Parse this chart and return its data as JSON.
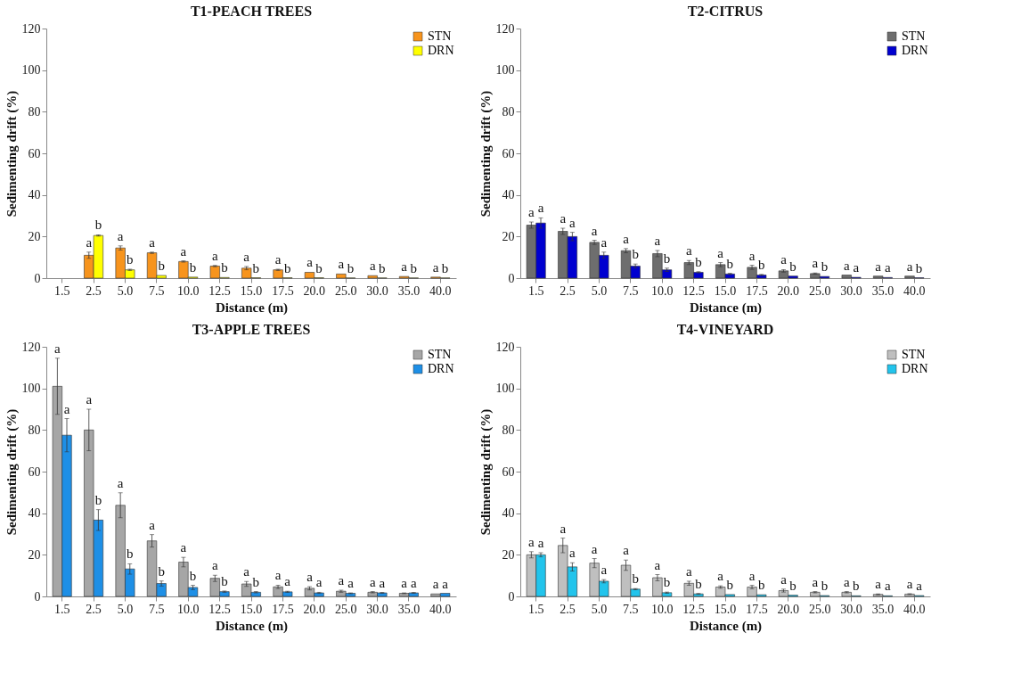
{
  "chart_data": [
    {
      "type": "bar",
      "title": "T1-PEACH TREES",
      "xlabel": "Distance (m)",
      "ylabel": "Sedimenting drift (%)",
      "categories": [
        "1.5",
        "2.5",
        "5.0",
        "7.5",
        "10.0",
        "12.5",
        "15.0",
        "17.5",
        "20.0",
        "25.0",
        "30.0",
        "35.0",
        "40.0"
      ],
      "ylim": [
        0,
        120
      ],
      "yticks": [
        0,
        20,
        40,
        60,
        80,
        100,
        120
      ],
      "grid": false,
      "legend": "top right",
      "series": [
        {
          "name": "STN",
          "color": "#f7941d",
          "values": [
            null,
            11,
            14.5,
            12.2,
            8,
            5.8,
            4.8,
            4,
            2.8,
            2,
            1.2,
            0.8,
            0.5
          ],
          "errors": [
            null,
            1.5,
            1,
            0.3,
            0.3,
            0.3,
            0.8,
            0.3,
            null,
            null,
            null,
            null,
            null
          ]
        },
        {
          "name": "DRN",
          "color": "#ffff00",
          "values": [
            null,
            20.5,
            4,
            1.3,
            0.5,
            0.3,
            0.2,
            0.2,
            0.2,
            0.1,
            0.1,
            0.1,
            0.1
          ],
          "errors": [
            null,
            0.3,
            0.3,
            null,
            null,
            null,
            null,
            null,
            null,
            null,
            null,
            null,
            null
          ]
        }
      ],
      "annotations": [
        {
          "text": "a",
          "x": "2.5",
          "y": 12.5
        },
        {
          "text": "b",
          "x": "2.5",
          "y": 20.8
        },
        {
          "text": "a",
          "x": "5.0",
          "y": 15.5
        },
        {
          "text": "b",
          "x": "5.0",
          "y": 4.3
        },
        {
          "text": "a",
          "x": "7.5",
          "y": 12.5
        },
        {
          "text": "b",
          "x": "7.5",
          "y": 1.3
        },
        {
          "text": "a",
          "x": "10.0",
          "y": 8.3
        },
        {
          "text": "b",
          "x": "10.0",
          "y": 0.5
        },
        {
          "text": "a",
          "x": "12.5",
          "y": 6.1
        },
        {
          "text": "b",
          "x": "12.5",
          "y": 0.3
        },
        {
          "text": "a",
          "x": "15.0",
          "y": 5.6
        },
        {
          "text": "b",
          "x": "15.0",
          "y": 0.2
        },
        {
          "text": "a",
          "x": "17.5",
          "y": 4.3
        },
        {
          "text": "b",
          "x": "17.5",
          "y": 0.2
        },
        {
          "text": "a",
          "x": "20.0",
          "y": 2.8
        },
        {
          "text": "b",
          "x": "20.0",
          "y": 0.2
        },
        {
          "text": "a",
          "x": "25.0",
          "y": 2
        },
        {
          "text": "b",
          "x": "25.0",
          "y": 0.1
        },
        {
          "text": "a",
          "x": "30.0",
          "y": 1.2
        },
        {
          "text": "b",
          "x": "30.0",
          "y": 0.1
        },
        {
          "text": "a",
          "x": "35.0",
          "y": 0.8
        },
        {
          "text": "b",
          "x": "35.0",
          "y": 0.1
        },
        {
          "text": "a",
          "x": "40.0",
          "y": 0.5
        },
        {
          "text": "b",
          "x": "40.0",
          "y": 0.1
        }
      ]
    },
    {
      "type": "bar",
      "title": "T2-CITRUS",
      "xlabel": "Distance (m)",
      "ylabel": "Sedimenting drift (%)",
      "categories": [
        "1.5",
        "2.5",
        "5.0",
        "7.5",
        "10.0",
        "12.5",
        "15.0",
        "17.5",
        "20.0",
        "25.0",
        "30.0",
        "35.0",
        "40.0"
      ],
      "ylim": [
        0,
        120
      ],
      "yticks": [
        0,
        20,
        40,
        60,
        80,
        100,
        120
      ],
      "grid": false,
      "legend": "top right",
      "series": [
        {
          "name": "STN",
          "color": "#6e6e6e",
          "values": [
            25.5,
            22.5,
            17.2,
            13.2,
            11.8,
            7.5,
            6.5,
            5.2,
            3.5,
            2.2,
            1.5,
            1,
            1
          ],
          "errors": [
            1.5,
            1.5,
            1,
            1,
            1.5,
            1,
            1,
            1,
            0.6,
            0.3,
            null,
            null,
            null
          ]
        },
        {
          "name": "DRN",
          "color": "#0000d0",
          "values": [
            26.5,
            20,
            11,
            5.8,
            4,
            2.8,
            2,
            1.5,
            1,
            0.8,
            0.4,
            0.3,
            0.2
          ],
          "errors": [
            2.5,
            2,
            1.5,
            1,
            0.8,
            0.3,
            0.3,
            0.3,
            null,
            null,
            null,
            null,
            null
          ]
        }
      ],
      "annotations": [
        {
          "text": "a",
          "x": "1.5",
          "y": 27
        },
        {
          "text": "a",
          "x": "1.5",
          "y": 29
        },
        {
          "text": "a",
          "x": "2.5",
          "y": 24
        },
        {
          "text": "a",
          "x": "2.5",
          "y": 22
        },
        {
          "text": "a",
          "x": "5.0",
          "y": 18.2
        },
        {
          "text": "a",
          "x": "5.0",
          "y": 12.5
        },
        {
          "text": "a",
          "x": "7.5",
          "y": 14.2
        },
        {
          "text": "b",
          "x": "7.5",
          "y": 6.8
        },
        {
          "text": "a",
          "x": "10.0",
          "y": 13.3
        },
        {
          "text": "b",
          "x": "10.0",
          "y": 4.8
        },
        {
          "text": "a",
          "x": "12.5",
          "y": 8.5
        },
        {
          "text": "b",
          "x": "12.5",
          "y": 3.1
        },
        {
          "text": "a",
          "x": "15.0",
          "y": 7.5
        },
        {
          "text": "b",
          "x": "15.0",
          "y": 2.3
        },
        {
          "text": "a",
          "x": "17.5",
          "y": 6.2
        },
        {
          "text": "b",
          "x": "17.5",
          "y": 1.8
        },
        {
          "text": "a",
          "x": "20.0",
          "y": 4.1
        },
        {
          "text": "b",
          "x": "20.0",
          "y": 1
        },
        {
          "text": "a",
          "x": "25.0",
          "y": 2.5
        },
        {
          "text": "b",
          "x": "25.0",
          "y": 0.8
        },
        {
          "text": "a",
          "x": "30.0",
          "y": 1.5
        },
        {
          "text": "a",
          "x": "30.0",
          "y": 0.4
        },
        {
          "text": "a",
          "x": "35.0",
          "y": 1
        },
        {
          "text": "a",
          "x": "35.0",
          "y": 0.3
        },
        {
          "text": "a",
          "x": "40.0",
          "y": 1
        },
        {
          "text": "b",
          "x": "40.0",
          "y": 0.2
        }
      ]
    },
    {
      "type": "bar",
      "title": "T3-APPLE TREES",
      "xlabel": "Distance (m)",
      "ylabel": "Sedimenting drift (%)",
      "categories": [
        "1.5",
        "2.5",
        "5.0",
        "7.5",
        "10.0",
        "12.5",
        "15.0",
        "17.5",
        "20.0",
        "25.0",
        "30.0",
        "35.0",
        "40.0"
      ],
      "ylim": [
        0,
        120
      ],
      "yticks": [
        0,
        20,
        40,
        60,
        80,
        100,
        120
      ],
      "grid": false,
      "legend": "top right",
      "series": [
        {
          "name": "STN",
          "color": "#a6a6a6",
          "values": [
            101,
            80,
            43.8,
            26.7,
            16.5,
            8.7,
            6,
            4.6,
            3.9,
            2.5,
            2,
            1.5,
            1.2
          ],
          "errors": [
            13.5,
            10,
            6,
            3,
            2.3,
            1.5,
            1.2,
            0.8,
            0.8,
            0.5,
            0.3,
            0.2,
            null
          ]
        },
        {
          "name": "DRN",
          "color": "#1e8fe6",
          "values": [
            77.5,
            36.7,
            13.2,
            6.2,
            4.3,
            2.3,
            2,
            2.2,
            1.7,
            1.5,
            1.7,
            1.7,
            1.5
          ],
          "errors": [
            8,
            5,
            2.5,
            1.2,
            1,
            0.3,
            0.3,
            0.3,
            0.3,
            0.2,
            0.2,
            0.2,
            null
          ]
        }
      ],
      "annotations": [
        {
          "text": "a",
          "x": "1.5",
          "y": 114.5
        },
        {
          "text": "a",
          "x": "1.5",
          "y": 85.5
        },
        {
          "text": "a",
          "x": "2.5",
          "y": 90
        },
        {
          "text": "b",
          "x": "2.5",
          "y": 41.7
        },
        {
          "text": "a",
          "x": "5.0",
          "y": 49.8
        },
        {
          "text": "b",
          "x": "5.0",
          "y": 15.7
        },
        {
          "text": "a",
          "x": "7.5",
          "y": 29.7
        },
        {
          "text": "b",
          "x": "7.5",
          "y": 7.4
        },
        {
          "text": "a",
          "x": "10.0",
          "y": 18.8
        },
        {
          "text": "b",
          "x": "10.0",
          "y": 5.3
        },
        {
          "text": "a",
          "x": "12.5",
          "y": 10.2
        },
        {
          "text": "b",
          "x": "12.5",
          "y": 2.6
        },
        {
          "text": "a",
          "x": "15.0",
          "y": 7.2
        },
        {
          "text": "b",
          "x": "15.0",
          "y": 2.3
        },
        {
          "text": "a",
          "x": "17.5",
          "y": 5.4
        },
        {
          "text": "a",
          "x": "17.5",
          "y": 2.5
        },
        {
          "text": "a",
          "x": "20.0",
          "y": 4.7
        },
        {
          "text": "a",
          "x": "20.0",
          "y": 2
        },
        {
          "text": "a",
          "x": "25.0",
          "y": 3
        },
        {
          "text": "a",
          "x": "25.0",
          "y": 1.7
        },
        {
          "text": "a",
          "x": "30.0",
          "y": 2.3
        },
        {
          "text": "a",
          "x": "30.0",
          "y": 1.9
        },
        {
          "text": "a",
          "x": "35.0",
          "y": 1.7
        },
        {
          "text": "a",
          "x": "35.0",
          "y": 1.9
        },
        {
          "text": "a",
          "x": "40.0",
          "y": 1.2
        },
        {
          "text": "a",
          "x": "40.0",
          "y": 1.5
        }
      ]
    },
    {
      "type": "bar",
      "title": "T4-VINEYARD",
      "xlabel": "Distance (m)",
      "ylabel": "Sedimenting drift (%)",
      "categories": [
        "1.5",
        "2.5",
        "5.0",
        "7.5",
        "10.0",
        "12.5",
        "15.0",
        "17.5",
        "20.0",
        "25.0",
        "30.0",
        "35.0",
        "40.0"
      ],
      "ylim": [
        0,
        120
      ],
      "yticks": [
        0,
        20,
        40,
        60,
        80,
        100,
        120
      ],
      "grid": false,
      "legend": "top right",
      "series": [
        {
          "name": "STN",
          "color": "#bfbfbf",
          "values": [
            20,
            24.5,
            16,
            15,
            9,
            6.3,
            4.5,
            4.5,
            2.8,
            2,
            2,
            1,
            1.1
          ],
          "errors": [
            1.5,
            3.5,
            2.2,
            2.5,
            1.5,
            1,
            0.6,
            0.8,
            0.7,
            0.3,
            0.3,
            0.2,
            0.2
          ]
        },
        {
          "name": "DRN",
          "color": "#22c4ec",
          "values": [
            20,
            14.2,
            7.3,
            3.5,
            1.8,
            1.2,
            0.9,
            0.8,
            0.6,
            0.4,
            0.3,
            0.3,
            0.4
          ],
          "errors": [
            1,
            2,
            0.8,
            0.3,
            0.3,
            0.2,
            null,
            null,
            null,
            null,
            null,
            null,
            null
          ]
        }
      ],
      "annotations": [
        {
          "text": "a",
          "x": "1.5",
          "y": 21.5
        },
        {
          "text": "a",
          "x": "1.5",
          "y": 21
        },
        {
          "text": "a",
          "x": "2.5",
          "y": 28
        },
        {
          "text": "a",
          "x": "2.5",
          "y": 16.2
        },
        {
          "text": "a",
          "x": "5.0",
          "y": 18.2
        },
        {
          "text": "a",
          "x": "5.0",
          "y": 8.1
        },
        {
          "text": "a",
          "x": "7.5",
          "y": 17.5
        },
        {
          "text": "b",
          "x": "7.5",
          "y": 3.8
        },
        {
          "text": "a",
          "x": "10.0",
          "y": 10.5
        },
        {
          "text": "b",
          "x": "10.0",
          "y": 2.1
        },
        {
          "text": "a",
          "x": "12.5",
          "y": 7.3
        },
        {
          "text": "b",
          "x": "12.5",
          "y": 1.4
        },
        {
          "text": "a",
          "x": "15.0",
          "y": 5.1
        },
        {
          "text": "b",
          "x": "15.0",
          "y": 0.9
        },
        {
          "text": "a",
          "x": "17.5",
          "y": 5.3
        },
        {
          "text": "b",
          "x": "17.5",
          "y": 0.8
        },
        {
          "text": "a",
          "x": "20.0",
          "y": 3.5
        },
        {
          "text": "b",
          "x": "20.0",
          "y": 0.6
        },
        {
          "text": "a",
          "x": "25.0",
          "y": 2.3
        },
        {
          "text": "b",
          "x": "25.0",
          "y": 0.4
        },
        {
          "text": "a",
          "x": "30.0",
          "y": 2.3
        },
        {
          "text": "b",
          "x": "30.0",
          "y": 0.3
        },
        {
          "text": "a",
          "x": "35.0",
          "y": 1.2
        },
        {
          "text": "a",
          "x": "35.0",
          "y": 0.3
        },
        {
          "text": "a",
          "x": "40.0",
          "y": 1.3
        },
        {
          "text": "a",
          "x": "40.0",
          "y": 0.4
        }
      ]
    }
  ]
}
